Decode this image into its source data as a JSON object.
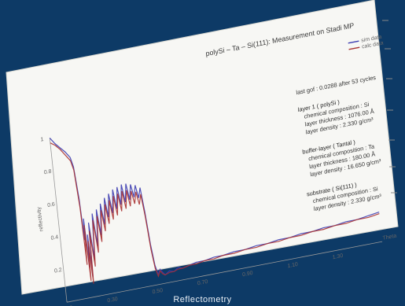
{
  "caption": "Reflectometry",
  "chart_data": {
    "type": "line",
    "title": "polySi – Ta – Si(111): Measurement on Stadi MP",
    "xlabel": "Theta",
    "ylabel": "reflectivity",
    "xlim": [
      0.1,
      1.5
    ],
    "ylim": [
      0.0,
      1.0
    ],
    "x_ticks": [
      "0.10",
      "0.30",
      "0.50",
      "0.70",
      "0.90",
      "1.10",
      "1.30"
    ],
    "y_ticks": [
      "0.2",
      "0.4",
      "0.6",
      "0.8",
      "1"
    ],
    "legend": [
      {
        "name": "sim data",
        "color": "#3b3bb0"
      },
      {
        "name": "calc data",
        "color": "#a83030"
      }
    ],
    "series": [
      {
        "name": "sim data",
        "color": "#3b3bb0",
        "x": [
          0.1,
          0.12,
          0.14,
          0.16,
          0.18,
          0.19,
          0.2,
          0.205,
          0.21,
          0.215,
          0.22,
          0.225,
          0.23,
          0.24,
          0.25,
          0.26,
          0.27,
          0.28,
          0.29,
          0.3,
          0.31,
          0.32,
          0.33,
          0.34,
          0.35,
          0.36,
          0.37,
          0.38,
          0.39,
          0.4,
          0.41,
          0.42,
          0.43,
          0.44,
          0.45,
          0.46,
          0.47,
          0.48,
          0.49,
          0.5,
          0.51,
          0.52,
          0.53,
          0.54,
          0.56,
          0.58,
          0.6,
          0.62,
          0.65,
          0.68,
          0.72,
          0.76,
          0.8,
          0.85,
          0.9,
          0.95,
          1.0,
          1.05,
          1.1,
          1.15,
          1.2,
          1.25,
          1.3,
          1.35,
          1.4,
          1.45,
          1.5
        ],
        "y": [
          1.0,
          0.96,
          0.93,
          0.9,
          0.86,
          0.8,
          0.6,
          0.35,
          0.48,
          0.18,
          0.38,
          0.12,
          0.45,
          0.22,
          0.5,
          0.3,
          0.52,
          0.36,
          0.55,
          0.42,
          0.58,
          0.46,
          0.6,
          0.48,
          0.62,
          0.5,
          0.63,
          0.52,
          0.64,
          0.53,
          0.64,
          0.54,
          0.63,
          0.55,
          0.62,
          0.54,
          0.6,
          0.45,
          0.25,
          0.12,
          0.06,
          0.09,
          0.07,
          0.05,
          0.07,
          0.06,
          0.08,
          0.07,
          0.08,
          0.09,
          0.09,
          0.1,
          0.1,
          0.11,
          0.11,
          0.12,
          0.12,
          0.13,
          0.13,
          0.14,
          0.14,
          0.15,
          0.15,
          0.16,
          0.16,
          0.17,
          0.18
        ]
      },
      {
        "name": "calc data",
        "color": "#a83030",
        "x": [
          0.1,
          0.12,
          0.14,
          0.16,
          0.18,
          0.19,
          0.2,
          0.205,
          0.21,
          0.215,
          0.22,
          0.225,
          0.23,
          0.24,
          0.25,
          0.26,
          0.27,
          0.28,
          0.29,
          0.3,
          0.31,
          0.32,
          0.33,
          0.34,
          0.35,
          0.36,
          0.37,
          0.38,
          0.39,
          0.4,
          0.41,
          0.42,
          0.43,
          0.44,
          0.45,
          0.46,
          0.47,
          0.48,
          0.49,
          0.5,
          0.51,
          0.52,
          0.53,
          0.54,
          0.56,
          0.58,
          0.6,
          0.62,
          0.65,
          0.68,
          0.72,
          0.76,
          0.8,
          0.85,
          0.9,
          0.95,
          1.0,
          1.05,
          1.1,
          1.15,
          1.2,
          1.25,
          1.3,
          1.35,
          1.4,
          1.45,
          1.5
        ],
        "y": [
          0.97,
          0.95,
          0.92,
          0.88,
          0.84,
          0.78,
          0.55,
          0.2,
          0.44,
          0.1,
          0.34,
          0.08,
          0.4,
          0.18,
          0.46,
          0.26,
          0.48,
          0.32,
          0.51,
          0.38,
          0.54,
          0.42,
          0.56,
          0.44,
          0.58,
          0.46,
          0.59,
          0.48,
          0.6,
          0.49,
          0.6,
          0.5,
          0.59,
          0.51,
          0.58,
          0.5,
          0.56,
          0.42,
          0.22,
          0.1,
          0.05,
          0.08,
          0.06,
          0.05,
          0.06,
          0.06,
          0.07,
          0.07,
          0.08,
          0.08,
          0.09,
          0.09,
          0.1,
          0.1,
          0.11,
          0.11,
          0.12,
          0.12,
          0.13,
          0.13,
          0.14,
          0.14,
          0.15,
          0.15,
          0.16,
          0.16,
          0.17
        ]
      }
    ],
    "annotations": {
      "fit": "last gof : 0.0288   after 53 cycles",
      "layers": [
        {
          "heading": "layer 1 ( polySi )",
          "lines": [
            "chemical composition : Si",
            "layer thickness     : 1076.00 Å",
            "layer density       : 2.330 g/cm³"
          ]
        },
        {
          "heading": "buffer-layer ( Tantal )",
          "lines": [
            "chemical composition : Ta",
            "layer thickness     : 180.00 Å",
            "layer density       : 16.650 g/cm³"
          ]
        },
        {
          "heading": "substrate ( Si(111) )",
          "lines": [
            "chemical composition : Si",
            "layer density       : 2.330 g/cm³"
          ]
        }
      ]
    }
  }
}
